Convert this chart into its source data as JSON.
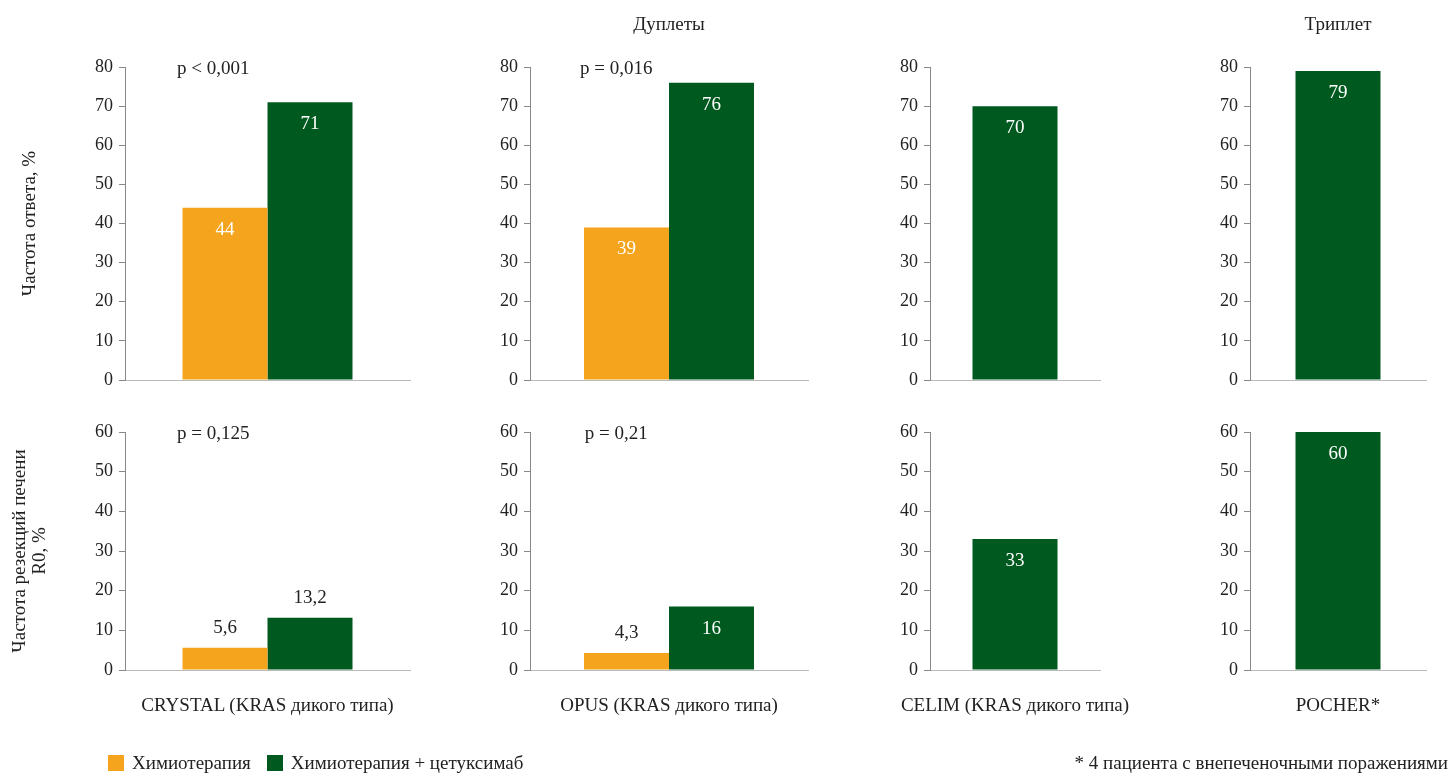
{
  "chart_data": [
    {
      "type": "bar",
      "categories": [
        null
      ],
      "ylabel": "Частота ответа, %",
      "ylim": [
        0,
        80
      ],
      "yticks": [
        0,
        10,
        20,
        30,
        40,
        50,
        60,
        70,
        80
      ],
      "tick_labels": "y",
      "data_labels": true,
      "annotations": [
        "p < 0,001"
      ],
      "series": [
        {
          "color": "#f5a51d",
          "values": [
            44
          ]
        },
        {
          "color": "#005a1f",
          "values": [
            71
          ]
        }
      ]
    },
    {
      "type": "bar",
      "categories": [
        null
      ],
      "title": "Дуплеты",
      "ylim": [
        0,
        80
      ],
      "yticks": [
        0,
        10,
        20,
        30,
        40,
        50,
        60,
        70,
        80
      ],
      "tick_labels": "y",
      "data_labels": true,
      "annotations": [
        "p = 0,016"
      ],
      "series": [
        {
          "color": "#f5a51d",
          "values": [
            39
          ]
        },
        {
          "color": "#005a1f",
          "values": [
            76
          ]
        }
      ]
    },
    {
      "type": "bar",
      "categories": [
        null
      ],
      "ylim": [
        0,
        80
      ],
      "yticks": [
        0,
        10,
        20,
        30,
        40,
        50,
        60,
        70,
        80
      ],
      "tick_labels": "y",
      "data_labels": true,
      "series": [
        {
          "color": "#005a1f",
          "values": [
            70
          ]
        }
      ]
    },
    {
      "type": "bar",
      "categories": [
        null
      ],
      "title": "Триплет",
      "ylim": [
        0,
        80
      ],
      "yticks": [
        0,
        10,
        20,
        30,
        40,
        50,
        60,
        70,
        80
      ],
      "tick_labels": "y",
      "data_labels": true,
      "series": [
        {
          "color": "#005a1f",
          "values": [
            79
          ]
        }
      ]
    },
    {
      "type": "bar",
      "categories": [
        null
      ],
      "ylabel": "Частота резекций печени R0, %",
      "xlabel": "CRYSTAL (KRAS дикого типа)",
      "ylim": [
        0,
        60
      ],
      "yticks": [
        0,
        10,
        20,
        30,
        40,
        50,
        60
      ],
      "tick_labels": "y",
      "legend": "bottom",
      "annotations": [
        "p = 0,125"
      ],
      "series": [
        {
          "name": "Химиотерапия",
          "color": "#f5a51d",
          "values": [
            5.6
          ],
          "value_labels": [
            "5,6"
          ]
        },
        {
          "name": "Химиотерапия + цетуксимаб",
          "color": "#005a1f",
          "values": [
            13.2
          ],
          "value_labels": [
            "13,2"
          ]
        }
      ]
    },
    {
      "type": "bar",
      "categories": [
        null
      ],
      "xlabel": "OPUS (KRAS дикого типа)",
      "ylim": [
        0,
        60
      ],
      "yticks": [
        0,
        10,
        20,
        30,
        40,
        50,
        60
      ],
      "tick_labels": "y",
      "annotations": [
        "p = 0,21"
      ],
      "series": [
        {
          "color": "#f5a51d",
          "values": [
            4.3
          ],
          "value_labels": [
            "4,3"
          ]
        },
        {
          "color": "#005a1f",
          "values": [
            16
          ],
          "value_labels": [
            "16"
          ]
        }
      ]
    },
    {
      "type": "bar",
      "categories": [
        null
      ],
      "xlabel": "CELIM (KRAS дикого типа)",
      "ylim": [
        0,
        60
      ],
      "yticks": [
        0,
        10,
        20,
        30,
        40,
        50,
        60
      ],
      "tick_labels": "y",
      "data_labels": true,
      "series": [
        {
          "color": "#005a1f",
          "values": [
            33
          ]
        }
      ]
    },
    {
      "type": "bar",
      "categories": [
        null
      ],
      "xlabel": "POCHER*",
      "ylim": [
        0,
        60
      ],
      "yticks": [
        0,
        10,
        20,
        30,
        40,
        50,
        60
      ],
      "tick_labels": "y",
      "data_labels": true,
      "annotations": [
        "* 4 пациента с внепеченочными поражениями"
      ],
      "series": [
        {
          "color": "#005a1f",
          "values": [
            60
          ]
        }
      ]
    }
  ]
}
